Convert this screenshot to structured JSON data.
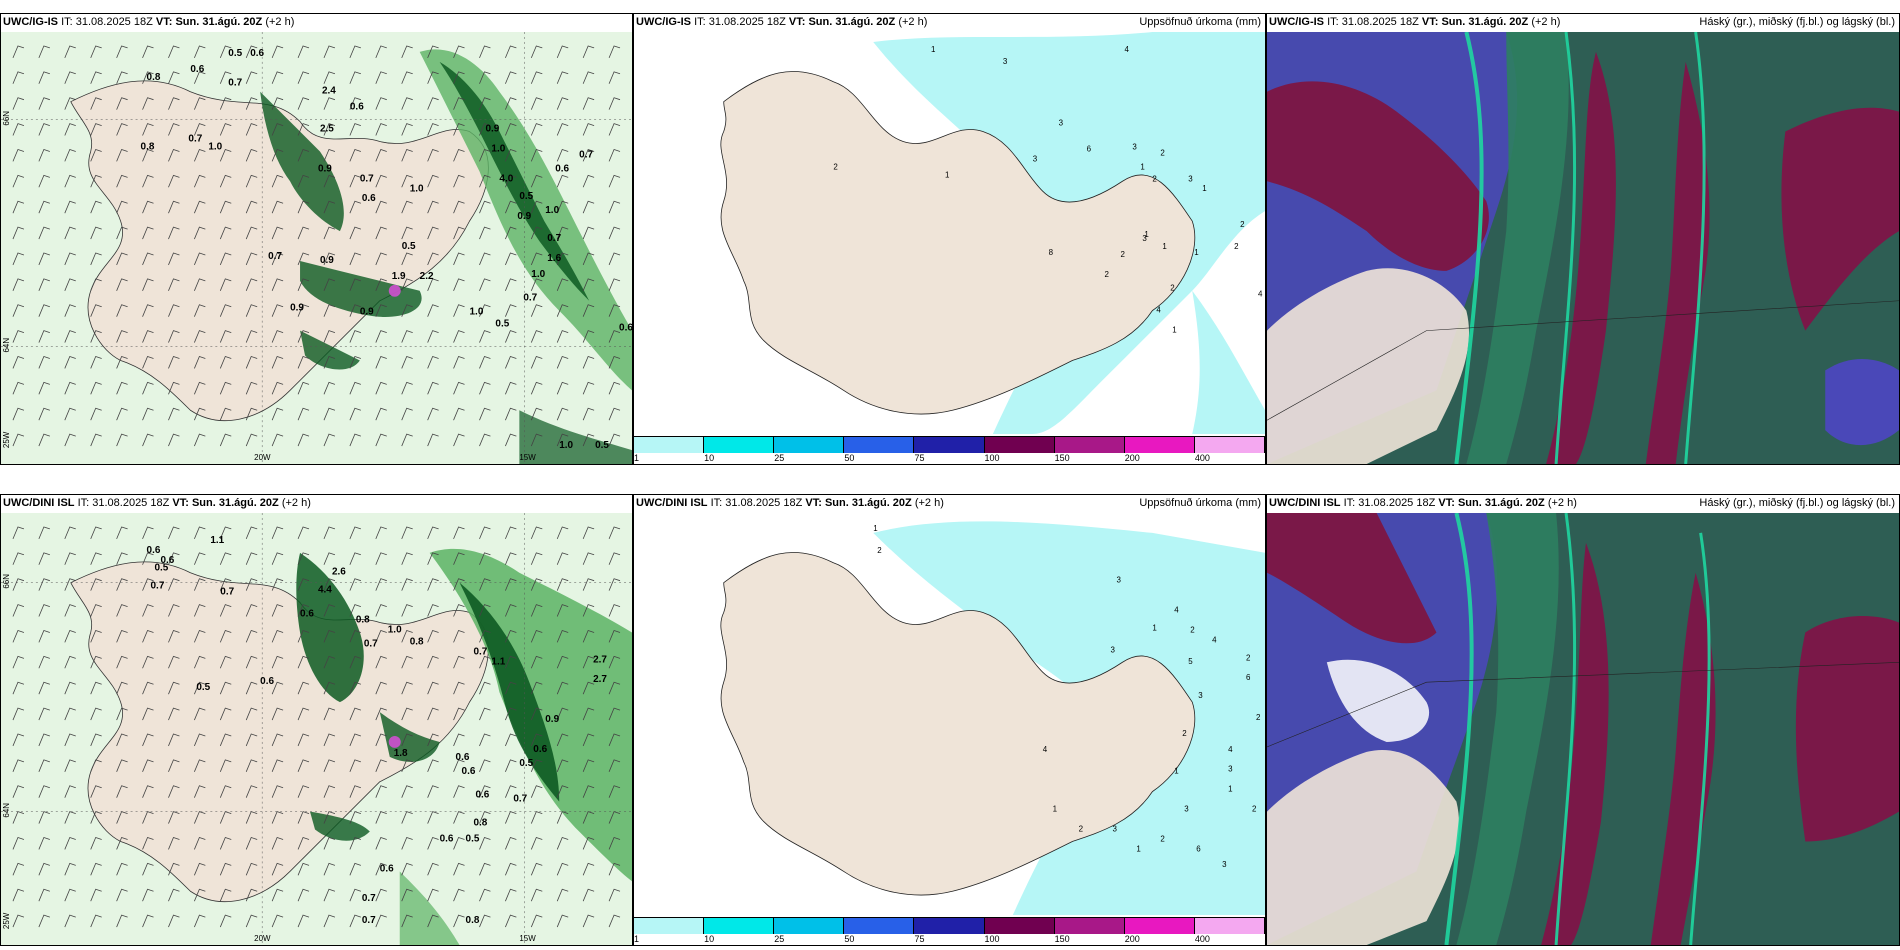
{
  "panels": [
    {
      "id": "p1",
      "source": "UWC/IG-IS",
      "it_label": "IT:",
      "it_value": "31.08.2025 18Z",
      "vt_label": "VT:",
      "vt_value": "Sun. 31.ágú. 20Z",
      "offset": "(+2 h)",
      "param": "",
      "values": [
        "0.5",
        "0.6",
        "0.6",
        "0.8",
        "0.7",
        "0.7",
        "0.8",
        "1.0",
        "2.4",
        "0.6",
        "2.5",
        "0.9",
        "0.7",
        "0.6",
        "1.0",
        "0.5",
        "0.7",
        "0.9",
        "0.9",
        "1.9",
        "2.2",
        "0.9",
        "1.0",
        "0.5",
        "0.9",
        "1.0",
        "4.0",
        "0.5",
        "0.9",
        "1.0",
        "0.6",
        "0.7",
        "0.7",
        "1.6",
        "1.0",
        "0.7",
        "0.6",
        "1.0",
        "0.5"
      ],
      "lat_labels": [
        "66N",
        "64N"
      ],
      "lon_labels": [
        "25W",
        "20W",
        "15W"
      ]
    },
    {
      "id": "p2",
      "source": "UWC/IG-IS",
      "it_label": "IT:",
      "it_value": "31.08.2025 18Z",
      "vt_label": "VT:",
      "vt_value": "Sun. 31.ágú. 20Z",
      "offset": "(+2 h)",
      "param": "Uppsöfnuð úrkoma (mm)",
      "values": [
        "1",
        "3",
        "4",
        "2",
        "2",
        "1",
        "1",
        "3",
        "6",
        "3",
        "2",
        "1",
        "2",
        "3",
        "1",
        "4",
        "8",
        "2",
        "1",
        "2",
        "4",
        "2",
        "3",
        "1",
        "2",
        "1",
        "3"
      ],
      "colorbar": {
        "colors": [
          "#b6f6f6",
          "#00e8e8",
          "#00c0e8",
          "#2860e8",
          "#2020a8",
          "#700050",
          "#a81888",
          "#e818c0",
          "#f4a8f0"
        ],
        "ticks": [
          "1",
          "10",
          "25",
          "50",
          "75",
          "100",
          "150",
          "200",
          "400"
        ]
      }
    },
    {
      "id": "p3",
      "source": "UWC/IG-IS",
      "it_label": "IT:",
      "it_value": "31.08.2025 18Z",
      "vt_label": "VT:",
      "vt_value": "Sun. 31.ágú. 20Z",
      "offset": "(+2 h)",
      "param": "Háský (gr.), miðský (fj.bl.) og lágský (bl.)"
    },
    {
      "id": "p4",
      "source": "UWC/DINI ISL",
      "it_label": "IT:",
      "it_value": "31.08.2025 18Z",
      "vt_label": "VT:",
      "vt_value": "Sun. 31.ágú. 20Z",
      "offset": "(+2 h)",
      "param": "",
      "values": [
        "0.6",
        "0.6",
        "0.5",
        "1.1",
        "0.7",
        "0.7",
        "0.6",
        "2.6",
        "4.4",
        "0.8",
        "1.0",
        "0.7",
        "0.5",
        "0.6",
        "0.8",
        "0.7",
        "1.1",
        "2.7",
        "2.7",
        "0.9",
        "0.6",
        "0.6",
        "1.8",
        "0.6",
        "0.5",
        "0.7",
        "0.6",
        "0.8",
        "0.6",
        "0.5",
        "0.6",
        "0.7",
        "0.7",
        "0.8"
      ],
      "lat_labels": [
        "66N",
        "64N"
      ],
      "lon_labels": [
        "25W",
        "20W",
        "15W"
      ]
    },
    {
      "id": "p5",
      "source": "UWC/DINI ISL",
      "it_label": "IT:",
      "it_value": "31.08.2025 18Z",
      "vt_label": "VT:",
      "vt_value": "Sun. 31.ágú. 20Z",
      "offset": "(+2 h)",
      "param": "Uppsöfnuð úrkoma (mm)",
      "values": [
        "1",
        "2",
        "3",
        "4",
        "2",
        "4",
        "1",
        "3",
        "5",
        "2",
        "3",
        "6",
        "2",
        "4",
        "3",
        "1",
        "2",
        "3",
        "2",
        "1",
        "6",
        "3",
        "1",
        "2",
        "4",
        "2",
        "1",
        "3"
      ],
      "colorbar": {
        "colors": [
          "#b6f6f6",
          "#00e8e8",
          "#00c0e8",
          "#2860e8",
          "#2020a8",
          "#700050",
          "#a81888",
          "#e818c0",
          "#f4a8f0"
        ],
        "ticks": [
          "1",
          "10",
          "25",
          "50",
          "75",
          "100",
          "150",
          "200",
          "400"
        ]
      }
    },
    {
      "id": "p6",
      "source": "UWC/DINI ISL",
      "it_label": "IT:",
      "it_value": "31.08.2025 18Z",
      "vt_label": "VT:",
      "vt_value": "Sun. 31.ágú. 20Z",
      "offset": "(+2 h)",
      "param": "Háský (gr.), miðský (fj.bl.) og lágský (bl.)"
    }
  ],
  "colors": {
    "land": "#efe4d8",
    "precip_light": "#cfeccc",
    "precip_mid": "#5cb364",
    "precip_dark": "#0d5a22",
    "rain_cyan": "#b6f6f6",
    "high_cloud": "#2e5e54",
    "mid_cloud": "#7a1848",
    "low_cloud": "#4a48b8",
    "edge_green": "#1fd6a0"
  }
}
